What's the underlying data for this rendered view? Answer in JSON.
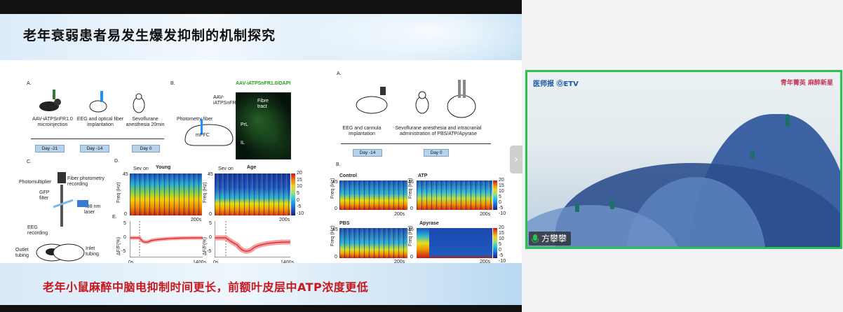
{
  "slide": {
    "title": "老年衰弱患者易发生爆发抑制的机制探究",
    "conclusion": "老年小鼠麻醉中脑电抑制时间更长，前额叶皮层中ATP浓度更低"
  },
  "left_figure": {
    "panel_a": {
      "label": "A.",
      "steps": [
        "AAV-iATPSnFR1.0 microinjection",
        "EEG and optical fiber implantation",
        "Sevoflurane anesthesia 20min"
      ],
      "days": [
        "Day -21",
        "Day -14",
        "Day 0"
      ]
    },
    "panel_b": {
      "label": "B.",
      "title": "AAV-iATPSnFR1.0/DAPI",
      "virus": "AAV-iATPSnFR1.0",
      "fiber": "Photometry fiber",
      "region": "mPFC",
      "fibre_tract": "Fibre tract",
      "prl": "PrL",
      "il": "IL"
    },
    "panel_c": {
      "label": "C.",
      "photomultiplier": "Photomultiplier",
      "recording": "Fiber photometry recording",
      "gfp": "GFP filter",
      "laser": "488 nm laser",
      "eeg": "EEG recording",
      "outlet": "Outlet tubing",
      "inlet": "Inlet tubing"
    },
    "panel_d": {
      "label": "D.",
      "young": "Young",
      "age": "Age",
      "sev_on": "Sev on",
      "ylabel": "Freq (Hz)",
      "ytick_top": "45",
      "ytick_bottom": "0",
      "scale": "200s",
      "cbar_ticks": [
        "20",
        "15",
        "10",
        "5",
        "0",
        "-5",
        "-10"
      ]
    },
    "panel_e": {
      "label": "E.",
      "ylabel": "ΔF/F(%)",
      "ytick_top": "5",
      "ytick_mid": "0",
      "ytick_bottom": "-5",
      "x_start": "0s",
      "x_end": "1400s"
    }
  },
  "right_figure": {
    "panel_a": {
      "label": "A.",
      "steps": [
        "EEG and cannula implantation",
        "Sevoflurane anesthesia and intracranial administration of PBS/ATP/Apyrase"
      ],
      "days": [
        "Day -14",
        "Day 0"
      ]
    },
    "panel_b": {
      "label": "B.",
      "groups": [
        "Control",
        "ATP",
        "PBS",
        "Apyrase"
      ],
      "ylabel": "Freq (Hz)",
      "ytick_top": "45",
      "ytick_bottom": "0",
      "scale": "200s",
      "cbar_ticks": [
        "20",
        "15",
        "10",
        "5",
        "0",
        "-5",
        "-10"
      ]
    }
  },
  "video": {
    "name": "方攀攀",
    "logo_left": "医师报 ⓄETV",
    "logo_right": "青年菁英 麻醉新星"
  },
  "colors": {
    "conclusion": "#c8161d",
    "video_border": "#2bc24f"
  }
}
